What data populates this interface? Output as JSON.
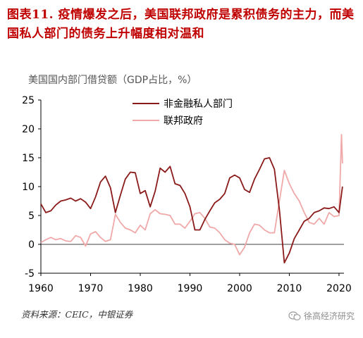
{
  "header": {
    "title": "图表11.  疫情爆发之后，美国联邦政府是累积债务的主力，而美国私人部门的债务上升幅度相对温和"
  },
  "footer": {
    "source": "资料来源：CEIC，中银证券",
    "watermark": "徐高经济研究",
    "watermark_icon": "wechat-icon"
  },
  "colors": {
    "title": "#c00000",
    "private_series": "#8b1a1a",
    "federal_series": "#f0a8a8"
  },
  "chart_data": {
    "type": "line",
    "title": "美国国内部门借贷额（GDP占比，%）",
    "xlabel": "",
    "ylabel": "",
    "xlim": [
      1960,
      2021
    ],
    "ylim": [
      -5,
      25
    ],
    "x_ticks": [
      1960,
      1970,
      1980,
      1990,
      2000,
      2010,
      2020
    ],
    "y_ticks": [
      -5,
      0,
      5,
      10,
      15,
      20,
      25
    ],
    "grid": false,
    "legend_position": "top-center",
    "series": [
      {
        "name": "非金融私人部门",
        "color": "#8b1a1a",
        "points": [
          [
            1960,
            7.0
          ],
          [
            1961,
            5.5
          ],
          [
            1962,
            5.8
          ],
          [
            1963,
            6.8
          ],
          [
            1964,
            7.5
          ],
          [
            1965,
            7.7
          ],
          [
            1966,
            8.0
          ],
          [
            1967,
            7.5
          ],
          [
            1968,
            7.9
          ],
          [
            1969,
            7.3
          ],
          [
            1970,
            6.2
          ],
          [
            1971,
            8.2
          ],
          [
            1972,
            10.8
          ],
          [
            1973,
            11.8
          ],
          [
            1974,
            9.8
          ],
          [
            1975,
            5.5
          ],
          [
            1976,
            8.5
          ],
          [
            1977,
            11.3
          ],
          [
            1978,
            12.5
          ],
          [
            1979,
            12.4
          ],
          [
            1980,
            8.8
          ],
          [
            1981,
            9.3
          ],
          [
            1982,
            6.5
          ],
          [
            1983,
            9.2
          ],
          [
            1984,
            13.2
          ],
          [
            1985,
            12.5
          ],
          [
            1986,
            13.5
          ],
          [
            1987,
            10.5
          ],
          [
            1988,
            10.2
          ],
          [
            1989,
            8.8
          ],
          [
            1990,
            6.5
          ],
          [
            1991,
            2.5
          ],
          [
            1992,
            2.5
          ],
          [
            1993,
            4.3
          ],
          [
            1994,
            5.8
          ],
          [
            1995,
            7.2
          ],
          [
            1996,
            7.8
          ],
          [
            1997,
            8.8
          ],
          [
            1998,
            11.5
          ],
          [
            1999,
            12.0
          ],
          [
            2000,
            11.5
          ],
          [
            2001,
            9.5
          ],
          [
            2002,
            9.0
          ],
          [
            2003,
            11.3
          ],
          [
            2004,
            13.0
          ],
          [
            2005,
            14.8
          ],
          [
            2006,
            15.0
          ],
          [
            2007,
            13.0
          ],
          [
            2008,
            6.0
          ],
          [
            2009,
            -3.2
          ],
          [
            2010,
            -1.5
          ],
          [
            2011,
            1.0
          ],
          [
            2012,
            2.5
          ],
          [
            2013,
            4.0
          ],
          [
            2014,
            4.5
          ],
          [
            2015,
            5.5
          ],
          [
            2016,
            5.8
          ],
          [
            2017,
            6.3
          ],
          [
            2018,
            6.2
          ],
          [
            2019,
            6.5
          ],
          [
            2020,
            5.5
          ],
          [
            2020.7,
            10.0
          ]
        ]
      },
      {
        "name": "联邦政府",
        "color": "#f0a8a8",
        "points": [
          [
            1960,
            0.3
          ],
          [
            1961,
            0.8
          ],
          [
            1962,
            1.2
          ],
          [
            1963,
            0.8
          ],
          [
            1964,
            1.0
          ],
          [
            1965,
            0.6
          ],
          [
            1966,
            0.5
          ],
          [
            1967,
            1.5
          ],
          [
            1968,
            1.2
          ],
          [
            1969,
            -0.3
          ],
          [
            1970,
            1.8
          ],
          [
            1971,
            2.2
          ],
          [
            1972,
            1.2
          ],
          [
            1973,
            0.5
          ],
          [
            1974,
            0.8
          ],
          [
            1975,
            5.2
          ],
          [
            1976,
            3.8
          ],
          [
            1977,
            2.8
          ],
          [
            1978,
            2.5
          ],
          [
            1979,
            2.0
          ],
          [
            1980,
            3.3
          ],
          [
            1981,
            2.5
          ],
          [
            1982,
            5.3
          ],
          [
            1983,
            6.0
          ],
          [
            1984,
            5.3
          ],
          [
            1985,
            5.2
          ],
          [
            1986,
            5.0
          ],
          [
            1987,
            3.5
          ],
          [
            1988,
            3.5
          ],
          [
            1989,
            2.8
          ],
          [
            1990,
            4.0
          ],
          [
            1991,
            5.3
          ],
          [
            1992,
            5.5
          ],
          [
            1993,
            4.5
          ],
          [
            1994,
            3.0
          ],
          [
            1995,
            2.8
          ],
          [
            1996,
            2.0
          ],
          [
            1997,
            0.8
          ],
          [
            1998,
            0.2
          ],
          [
            1999,
            0.0
          ],
          [
            2000,
            -1.8
          ],
          [
            2001,
            -0.5
          ],
          [
            2002,
            2.0
          ],
          [
            2003,
            3.5
          ],
          [
            2004,
            3.3
          ],
          [
            2005,
            2.5
          ],
          [
            2006,
            2.0
          ],
          [
            2007,
            2.0
          ],
          [
            2008,
            7.5
          ],
          [
            2009,
            12.8
          ],
          [
            2010,
            10.5
          ],
          [
            2011,
            8.8
          ],
          [
            2012,
            7.5
          ],
          [
            2013,
            5.5
          ],
          [
            2014,
            3.8
          ],
          [
            2015,
            3.5
          ],
          [
            2016,
            4.5
          ],
          [
            2017,
            3.5
          ],
          [
            2018,
            5.5
          ],
          [
            2019,
            4.8
          ],
          [
            2020,
            5.0
          ],
          [
            2020.5,
            19.0
          ],
          [
            2020.7,
            14.0
          ]
        ]
      }
    ]
  }
}
